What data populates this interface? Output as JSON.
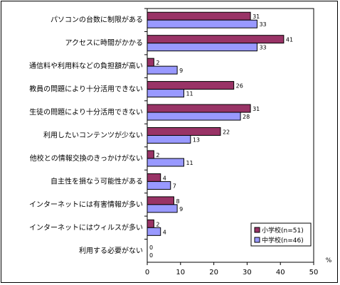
{
  "chart_data": {
    "type": "bar",
    "orientation": "horizontal",
    "categories": [
      "パソコンの台数に制限がある",
      "アクセスに時間がかかる",
      "通信料や利用料などの負担額が高い",
      "教員の問題により十分活用できない",
      "生徒の問題により十分活用できない",
      "利用したいコンテンツが少ない",
      "他校との情報交換のきっかけがない",
      "自主性を損なう可能性がある",
      "インターネットには有害情報が多い",
      "インターネットにはウィルスが多い",
      "利用する必要がない"
    ],
    "series": [
      {
        "name": "小学校(n=51)",
        "color": "#993366",
        "values": [
          31,
          41,
          2,
          26,
          31,
          22,
          2,
          4,
          8,
          2,
          0
        ]
      },
      {
        "name": "中学校(n=46)",
        "color": "#9999ff",
        "values": [
          33,
          33,
          9,
          11,
          28,
          13,
          11,
          7,
          9,
          4,
          0
        ]
      }
    ],
    "xlim": [
      0,
      50
    ],
    "xticks": [
      "0",
      "10",
      "20",
      "30",
      "40",
      "50"
    ],
    "xunit": "%",
    "grid": false,
    "legend": "bottom-right"
  }
}
